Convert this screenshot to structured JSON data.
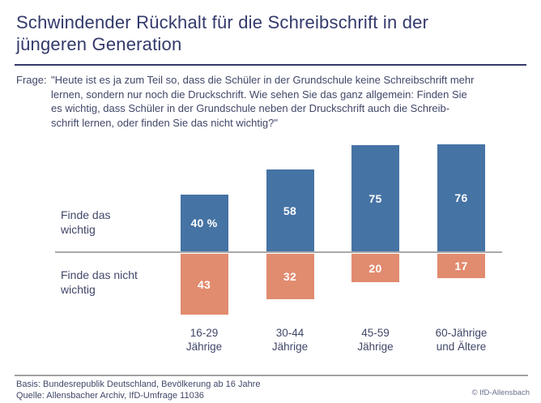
{
  "title": {
    "line1": "Schwindender Rückhalt für die Schreibschrift in der",
    "line2": "jüngeren Generation"
  },
  "question": {
    "label": "Frage:",
    "lines": [
      "\"Heute ist es ja zum Teil so, dass die Schüler in der Grundschule keine Schreibschrift mehr",
      "lernen, sondern nur noch die Druckschrift. Wie sehen Sie das ganz allgemein: Finden Sie",
      "es wichtig, dass Schüler in der Grundschule neben der Druckschrift auch die Schreib-",
      "schrift lernen, oder finden Sie das nicht wichtig?\""
    ]
  },
  "chart_data": {
    "type": "bar",
    "subtype": "diverging-vertical",
    "unit": "percent",
    "categories": [
      "16-29\nJährige",
      "30-44\nJährige",
      "45-59\nJährige",
      "60-Jährige\nund Ältere"
    ],
    "series": [
      {
        "name": "Finde das wichtig",
        "direction": "up",
        "values": [
          40,
          58,
          75,
          76
        ],
        "value_labels": [
          "40 %",
          "58",
          "75",
          "76"
        ],
        "color": "#4573a4"
      },
      {
        "name": "Finde das nicht wichtig",
        "direction": "down",
        "values": [
          43,
          32,
          20,
          17
        ],
        "value_labels": [
          "43",
          "32",
          "20",
          "17"
        ],
        "color": "#e18b6f"
      }
    ],
    "axis": {
      "zero_line": true,
      "gridlines": false,
      "legend_position": "left-row-labels"
    }
  },
  "footer": {
    "basis": "Basis: Bundesrepublik Deutschland, Bevölkerung ab 16 Jahre",
    "quelle": "Quelle: Allensbacher Archiv, IfD-Umfrage 11036",
    "copyright": "© IfD-Allensbach"
  },
  "colors": {
    "accent_navy": "#333a6b",
    "body_text": "#414769",
    "bar_wichtig": "#4573a4",
    "bar_nicht_wichtig": "#e18b6f",
    "zero_line_gray": "#a9a9a9",
    "value_label_text": "#ffffff"
  }
}
